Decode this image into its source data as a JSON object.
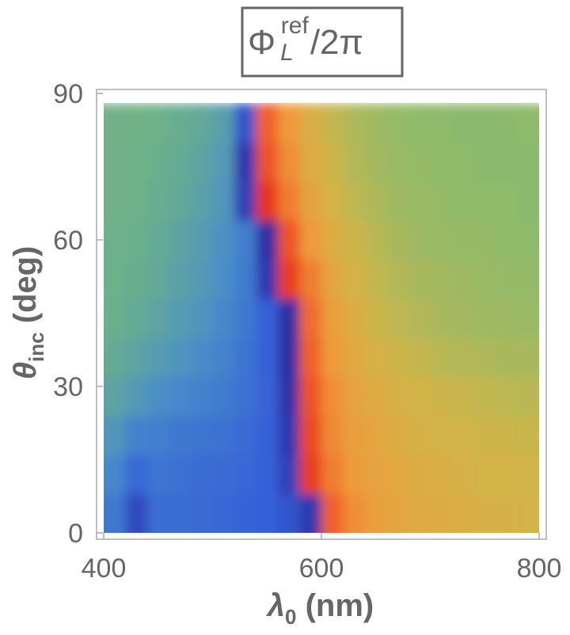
{
  "chart_data": {
    "type": "heatmap",
    "title": {
      "base": "Φ",
      "superscript": "ref",
      "subscript": "L",
      "rest": "/2π"
    },
    "x_label": {
      "base": "λ",
      "subscript": "0",
      "rest": " (nm)"
    },
    "y_label": {
      "base": "θ",
      "subscript": "inc",
      "rest": " (deg)"
    },
    "xlim": [
      400,
      800
    ],
    "xticks": [
      400,
      600,
      800
    ],
    "ylim": [
      0,
      90
    ],
    "yticks": [
      0,
      30,
      60,
      90
    ],
    "zlim": [
      0,
      1
    ],
    "colorscale": [
      [
        0,
        "#2a1a8c"
      ],
      [
        0.18,
        "#3560d8"
      ],
      [
        0.32,
        "#4a8fc8"
      ],
      [
        0.45,
        "#6aaf8c"
      ],
      [
        0.55,
        "#8fba6a"
      ],
      [
        0.68,
        "#d2b548"
      ],
      [
        0.8,
        "#ef9a3a"
      ],
      [
        0.9,
        "#f0602a"
      ],
      [
        1,
        "#e01818"
      ]
    ],
    "x": [
      410,
      430,
      450,
      470,
      490,
      510,
      530,
      550,
      570,
      590,
      610,
      630,
      650,
      670,
      690,
      710,
      730,
      750,
      770,
      790
    ],
    "y": [
      4,
      12,
      20,
      28,
      36,
      44,
      52,
      60,
      68,
      76,
      84
    ],
    "z": [
      [
        0.25,
        0.12,
        0.22,
        0.22,
        0.21,
        0.2,
        0.19,
        0.18,
        0.15,
        0.08,
        0.9,
        0.82,
        0.78,
        0.75,
        0.73,
        0.72,
        0.71,
        0.7,
        0.7,
        0.69
      ],
      [
        0.3,
        0.2,
        0.24,
        0.23,
        0.22,
        0.21,
        0.2,
        0.18,
        0.1,
        0.95,
        0.85,
        0.79,
        0.76,
        0.74,
        0.72,
        0.71,
        0.7,
        0.69,
        0.69,
        0.68
      ],
      [
        0.35,
        0.28,
        0.27,
        0.25,
        0.24,
        0.23,
        0.21,
        0.18,
        0.08,
        0.93,
        0.83,
        0.78,
        0.75,
        0.72,
        0.7,
        0.69,
        0.68,
        0.67,
        0.67,
        0.66
      ],
      [
        0.4,
        0.36,
        0.32,
        0.3,
        0.28,
        0.26,
        0.23,
        0.19,
        0.06,
        0.92,
        0.82,
        0.76,
        0.73,
        0.7,
        0.68,
        0.67,
        0.66,
        0.65,
        0.64,
        0.63
      ],
      [
        0.43,
        0.4,
        0.37,
        0.34,
        0.31,
        0.28,
        0.24,
        0.18,
        0.05,
        0.9,
        0.8,
        0.74,
        0.7,
        0.67,
        0.65,
        0.63,
        0.62,
        0.61,
        0.6,
        0.6
      ],
      [
        0.45,
        0.43,
        0.4,
        0.37,
        0.34,
        0.3,
        0.25,
        0.18,
        0.05,
        0.88,
        0.78,
        0.72,
        0.67,
        0.64,
        0.62,
        0.6,
        0.59,
        0.58,
        0.58,
        0.57
      ],
      [
        0.46,
        0.44,
        0.42,
        0.39,
        0.36,
        0.32,
        0.26,
        0.08,
        0.95,
        0.85,
        0.75,
        0.69,
        0.65,
        0.62,
        0.6,
        0.59,
        0.58,
        0.57,
        0.56,
        0.56
      ],
      [
        0.46,
        0.45,
        0.43,
        0.4,
        0.37,
        0.33,
        0.27,
        0.05,
        0.92,
        0.8,
        0.72,
        0.67,
        0.63,
        0.6,
        0.58,
        0.57,
        0.56,
        0.56,
        0.55,
        0.55
      ],
      [
        0.47,
        0.46,
        0.44,
        0.42,
        0.39,
        0.35,
        0.1,
        0.96,
        0.85,
        0.76,
        0.69,
        0.64,
        0.61,
        0.58,
        0.57,
        0.56,
        0.55,
        0.55,
        0.55,
        0.54
      ],
      [
        0.47,
        0.46,
        0.45,
        0.43,
        0.4,
        0.36,
        0.08,
        0.92,
        0.82,
        0.73,
        0.67,
        0.62,
        0.59,
        0.57,
        0.56,
        0.55,
        0.55,
        0.54,
        0.54,
        0.54
      ],
      [
        0.47,
        0.47,
        0.46,
        0.44,
        0.42,
        0.38,
        0.15,
        0.9,
        0.8,
        0.71,
        0.65,
        0.61,
        0.58,
        0.56,
        0.55,
        0.55,
        0.54,
        0.54,
        0.54,
        0.55
      ]
    ]
  }
}
